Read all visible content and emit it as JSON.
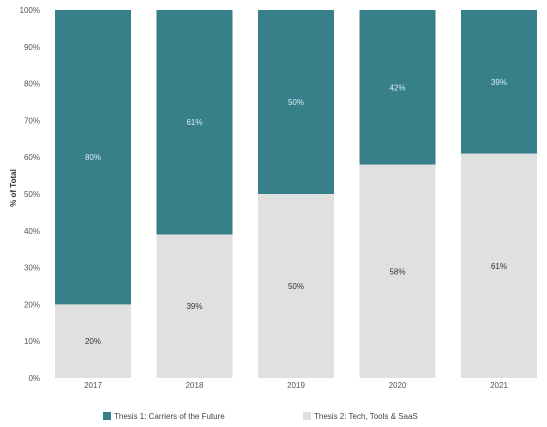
{
  "chart_data": {
    "type": "bar",
    "stacked": true,
    "categories": [
      "2017",
      "2018",
      "2019",
      "2020",
      "2021"
    ],
    "series": [
      {
        "name": "Thesis 2: Tech, Tools & SaaS",
        "values": [
          20,
          39,
          50,
          58,
          61
        ],
        "labels": [
          "20%",
          "39%",
          "50%",
          "58%",
          "61%"
        ],
        "color": "#e0e0e0",
        "label_color": "#333333"
      },
      {
        "name": "Thesis 1: Carriers of the Future",
        "values": [
          80,
          61,
          50,
          42,
          39
        ],
        "labels": [
          "80%",
          "61%",
          "50%",
          "42%",
          "39%"
        ],
        "color": "#37808a",
        "label_color": "#d8ecee"
      }
    ],
    "ylabel": "% of Total",
    "ylim": [
      0,
      100
    ],
    "yticks": [
      "0%",
      "10%",
      "20%",
      "30%",
      "40%",
      "50%",
      "60%",
      "70%",
      "80%",
      "90%",
      "100%"
    ],
    "legend_position": "bottom",
    "grid": false
  }
}
